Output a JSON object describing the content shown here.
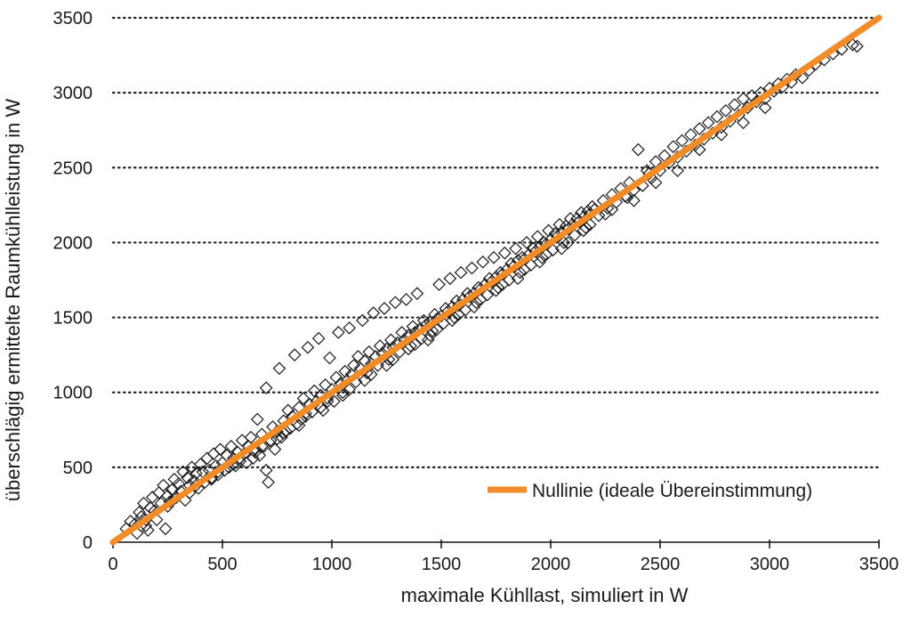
{
  "chart_data": {
    "type": "scatter",
    "xlabel": "maximale Kühllast, simuliert in W",
    "ylabel": "überschlägig ermittelte Raumkühlleistung in W",
    "xlim": [
      0,
      3500
    ],
    "ylim": [
      0,
      3500
    ],
    "xticks": [
      "0",
      "500",
      "1000",
      "1500",
      "2000",
      "2500",
      "3000",
      "3500"
    ],
    "yticks": [
      "0",
      "500",
      "1000",
      "1500",
      "2000",
      "2500",
      "3000",
      "3500"
    ],
    "grid": "horizontal dotted",
    "legend": {
      "position": "bottom-right",
      "entries": [
        "Nullinie (ideale Übereinstimmung)"
      ]
    },
    "colors": {
      "reference_line": "#f28c28",
      "markers": "#1a1a1a"
    },
    "marker": "hollow-diamond",
    "series": [
      {
        "name": "Nullinie (ideale Übereinstimmung)",
        "type": "line",
        "x": [
          0,
          3500
        ],
        "y": [
          0,
          3500
        ]
      }
    ],
    "points": [
      [
        60,
        90
      ],
      [
        80,
        140
      ],
      [
        100,
        120
      ],
      [
        110,
        60
      ],
      [
        120,
        200
      ],
      [
        130,
        170
      ],
      [
        140,
        260
      ],
      [
        150,
        110
      ],
      [
        160,
        80
      ],
      [
        170,
        230
      ],
      [
        180,
        300
      ],
      [
        190,
        210
      ],
      [
        200,
        150
      ],
      [
        210,
        330
      ],
      [
        220,
        260
      ],
      [
        230,
        380
      ],
      [
        240,
        90
      ],
      [
        250,
        310
      ],
      [
        260,
        270
      ],
      [
        270,
        350
      ],
      [
        280,
        420
      ],
      [
        290,
        300
      ],
      [
        300,
        390
      ],
      [
        310,
        340
      ],
      [
        320,
        470
      ],
      [
        330,
        280
      ],
      [
        340,
        430
      ],
      [
        350,
        380
      ],
      [
        360,
        500
      ],
      [
        370,
        410
      ],
      [
        380,
        460
      ],
      [
        390,
        360
      ],
      [
        400,
        520
      ],
      [
        410,
        470
      ],
      [
        420,
        400
      ],
      [
        430,
        560
      ],
      [
        440,
        480
      ],
      [
        450,
        430
      ],
      [
        460,
        590
      ],
      [
        470,
        510
      ],
      [
        480,
        450
      ],
      [
        490,
        620
      ],
      [
        500,
        530
      ],
      [
        510,
        480
      ],
      [
        520,
        580
      ],
      [
        530,
        500
      ],
      [
        540,
        640
      ],
      [
        550,
        560
      ],
      [
        560,
        510
      ],
      [
        570,
        600
      ],
      [
        580,
        540
      ],
      [
        590,
        680
      ],
      [
        600,
        590
      ],
      [
        610,
        530
      ],
      [
        620,
        640
      ],
      [
        630,
        700
      ],
      [
        640,
        560
      ],
      [
        650,
        620
      ],
      [
        660,
        820
      ],
      [
        670,
        580
      ],
      [
        680,
        720
      ],
      [
        690,
        640
      ],
      [
        700,
        1030
      ],
      [
        700,
        480
      ],
      [
        710,
        400
      ],
      [
        720,
        680
      ],
      [
        730,
        770
      ],
      [
        740,
        620
      ],
      [
        750,
        740
      ],
      [
        760,
        1160
      ],
      [
        770,
        700
      ],
      [
        780,
        810
      ],
      [
        790,
        740
      ],
      [
        800,
        880
      ],
      [
        810,
        760
      ],
      [
        820,
        840
      ],
      [
        830,
        1250
      ],
      [
        840,
        790
      ],
      [
        850,
        900
      ],
      [
        860,
        820
      ],
      [
        870,
        960
      ],
      [
        880,
        860
      ],
      [
        890,
        1300
      ],
      [
        900,
        920
      ],
      [
        910,
        870
      ],
      [
        920,
        1010
      ],
      [
        930,
        940
      ],
      [
        940,
        1360
      ],
      [
        950,
        980
      ],
      [
        960,
        880
      ],
      [
        970,
        1050
      ],
      [
        980,
        960
      ],
      [
        990,
        1230
      ],
      [
        1000,
        1020
      ],
      [
        1010,
        940
      ],
      [
        1020,
        1100
      ],
      [
        1030,
        1400
      ],
      [
        1040,
        1060
      ],
      [
        1050,
        1000
      ],
      [
        1060,
        1140
      ],
      [
        1070,
        1080
      ],
      [
        1080,
        1430
      ],
      [
        1090,
        1120
      ],
      [
        1100,
        1180
      ],
      [
        1110,
        1070
      ],
      [
        1120,
        1240
      ],
      [
        1130,
        1160
      ],
      [
        1140,
        1480
      ],
      [
        1150,
        1210
      ],
      [
        1160,
        1130
      ],
      [
        1170,
        1270
      ],
      [
        1180,
        1190
      ],
      [
        1190,
        1530
      ],
      [
        1200,
        1240
      ],
      [
        1210,
        1180
      ],
      [
        1220,
        1310
      ],
      [
        1230,
        1260
      ],
      [
        1240,
        1560
      ],
      [
        1250,
        1290
      ],
      [
        1260,
        1220
      ],
      [
        1270,
        1350
      ],
      [
        1280,
        1300
      ],
      [
        1290,
        1600
      ],
      [
        1300,
        1330
      ],
      [
        1310,
        1270
      ],
      [
        1320,
        1400
      ],
      [
        1330,
        1350
      ],
      [
        1340,
        1620
      ],
      [
        1350,
        1380
      ],
      [
        1360,
        1310
      ],
      [
        1370,
        1440
      ],
      [
        1380,
        1400
      ],
      [
        1390,
        1660
      ],
      [
        1400,
        1420
      ],
      [
        1410,
        1360
      ],
      [
        1420,
        1480
      ],
      [
        1430,
        1450
      ],
      [
        1440,
        1350
      ],
      [
        1450,
        1470
      ],
      [
        1460,
        1410
      ],
      [
        1470,
        1520
      ],
      [
        1480,
        1490
      ],
      [
        1490,
        1720
      ],
      [
        1500,
        1510
      ],
      [
        1510,
        1460
      ],
      [
        1520,
        1560
      ],
      [
        1530,
        1540
      ],
      [
        1540,
        1760
      ],
      [
        1550,
        1570
      ],
      [
        1560,
        1500
      ],
      [
        1570,
        1610
      ],
      [
        1580,
        1580
      ],
      [
        1590,
        1800
      ],
      [
        1600,
        1620
      ],
      [
        1610,
        1550
      ],
      [
        1620,
        1660
      ],
      [
        1630,
        1640
      ],
      [
        1640,
        1830
      ],
      [
        1650,
        1660
      ],
      [
        1660,
        1600
      ],
      [
        1670,
        1700
      ],
      [
        1680,
        1690
      ],
      [
        1690,
        1870
      ],
      [
        1700,
        1720
      ],
      [
        1710,
        1650
      ],
      [
        1720,
        1760
      ],
      [
        1730,
        1740
      ],
      [
        1740,
        1900
      ],
      [
        1750,
        1770
      ],
      [
        1760,
        1700
      ],
      [
        1770,
        1800
      ],
      [
        1780,
        1790
      ],
      [
        1790,
        1930
      ],
      [
        1800,
        1820
      ],
      [
        1810,
        1750
      ],
      [
        1820,
        1860
      ],
      [
        1830,
        1840
      ],
      [
        1840,
        1960
      ],
      [
        1850,
        1880
      ],
      [
        1860,
        1800
      ],
      [
        1870,
        1900
      ],
      [
        1880,
        1890
      ],
      [
        1890,
        2000
      ],
      [
        1900,
        1920
      ],
      [
        1910,
        1850
      ],
      [
        1920,
        1960
      ],
      [
        1930,
        1940
      ],
      [
        1940,
        2040
      ],
      [
        1950,
        1970
      ],
      [
        1960,
        1900
      ],
      [
        1970,
        2000
      ],
      [
        1980,
        1990
      ],
      [
        1990,
        2080
      ],
      [
        2000,
        2020
      ],
      [
        2010,
        1950
      ],
      [
        2020,
        2060
      ],
      [
        2030,
        2040
      ],
      [
        2040,
        2120
      ],
      [
        2050,
        2070
      ],
      [
        2060,
        2000
      ],
      [
        2070,
        2110
      ],
      [
        2080,
        2090
      ],
      [
        2090,
        2160
      ],
      [
        2100,
        2120
      ],
      [
        2110,
        2050
      ],
      [
        2120,
        2160
      ],
      [
        2130,
        2140
      ],
      [
        2140,
        2200
      ],
      [
        2150,
        2170
      ],
      [
        2160,
        2100
      ],
      [
        2170,
        2210
      ],
      [
        2180,
        2190
      ],
      [
        2190,
        2240
      ],
      [
        2200,
        2220
      ],
      [
        2220,
        2180
      ],
      [
        2240,
        2280
      ],
      [
        2260,
        2230
      ],
      [
        2280,
        2320
      ],
      [
        2300,
        2270
      ],
      [
        2320,
        2360
      ],
      [
        2340,
        2310
      ],
      [
        2360,
        2400
      ],
      [
        2380,
        2350
      ],
      [
        2400,
        2620
      ],
      [
        2420,
        2380
      ],
      [
        2440,
        2480
      ],
      [
        2460,
        2430
      ],
      [
        2480,
        2540
      ],
      [
        2500,
        2480
      ],
      [
        2520,
        2580
      ],
      [
        2540,
        2530
      ],
      [
        2560,
        2640
      ],
      [
        2580,
        2570
      ],
      [
        2600,
        2680
      ],
      [
        2620,
        2610
      ],
      [
        2640,
        2720
      ],
      [
        2660,
        2650
      ],
      [
        2680,
        2760
      ],
      [
        2700,
        2690
      ],
      [
        2720,
        2800
      ],
      [
        2740,
        2730
      ],
      [
        2760,
        2840
      ],
      [
        2780,
        2770
      ],
      [
        2800,
        2880
      ],
      [
        2820,
        2810
      ],
      [
        2840,
        2920
      ],
      [
        2860,
        2850
      ],
      [
        2880,
        2960
      ],
      [
        2900,
        2900
      ],
      [
        2920,
        2980
      ],
      [
        2940,
        2940
      ],
      [
        2960,
        3000
      ],
      [
        2980,
        2960
      ],
      [
        3000,
        3030
      ],
      [
        3020,
        3010
      ],
      [
        3040,
        3060
      ],
      [
        3060,
        3040
      ],
      [
        3080,
        3090
      ],
      [
        3100,
        3070
      ],
      [
        3120,
        3120
      ],
      [
        3150,
        3100
      ],
      [
        3180,
        3150
      ],
      [
        3210,
        3190
      ],
      [
        3250,
        3220
      ],
      [
        3290,
        3260
      ],
      [
        3330,
        3290
      ],
      [
        3380,
        3320
      ],
      [
        3400,
        3310
      ],
      [
        2450,
        2460
      ],
      [
        2350,
        2300
      ],
      [
        2250,
        2190
      ],
      [
        2150,
        2080
      ],
      [
        2050,
        1960
      ],
      [
        1950,
        1870
      ],
      [
        1850,
        1760
      ],
      [
        1750,
        1680
      ],
      [
        1650,
        1570
      ],
      [
        1550,
        1480
      ],
      [
        1450,
        1380
      ],
      [
        1350,
        1290
      ],
      [
        1250,
        1180
      ],
      [
        1150,
        1080
      ],
      [
        1050,
        980
      ],
      [
        950,
        900
      ],
      [
        850,
        780
      ],
      [
        750,
        690
      ],
      [
        650,
        600
      ],
      [
        550,
        520
      ],
      [
        450,
        420
      ],
      [
        350,
        330
      ],
      [
        250,
        240
      ],
      [
        150,
        150
      ],
      [
        2580,
        2480
      ],
      [
        2680,
        2620
      ],
      [
        2780,
        2720
      ],
      [
        2880,
        2800
      ],
      [
        2980,
        2900
      ],
      [
        2480,
        2400
      ],
      [
        2380,
        2280
      ],
      [
        2280,
        2220
      ],
      [
        2180,
        2120
      ],
      [
        2080,
        2000
      ],
      [
        1980,
        1920
      ],
      [
        1880,
        1820
      ],
      [
        1780,
        1720
      ],
      [
        1680,
        1620
      ],
      [
        1580,
        1520
      ],
      [
        1480,
        1420
      ],
      [
        1380,
        1320
      ],
      [
        1280,
        1220
      ],
      [
        1180,
        1120
      ],
      [
        1080,
        1020
      ],
      [
        980,
        940
      ],
      [
        880,
        840
      ],
      [
        780,
        730
      ],
      [
        680,
        640
      ],
      [
        580,
        560
      ],
      [
        480,
        470
      ],
      [
        380,
        380
      ],
      [
        280,
        290
      ]
    ]
  }
}
